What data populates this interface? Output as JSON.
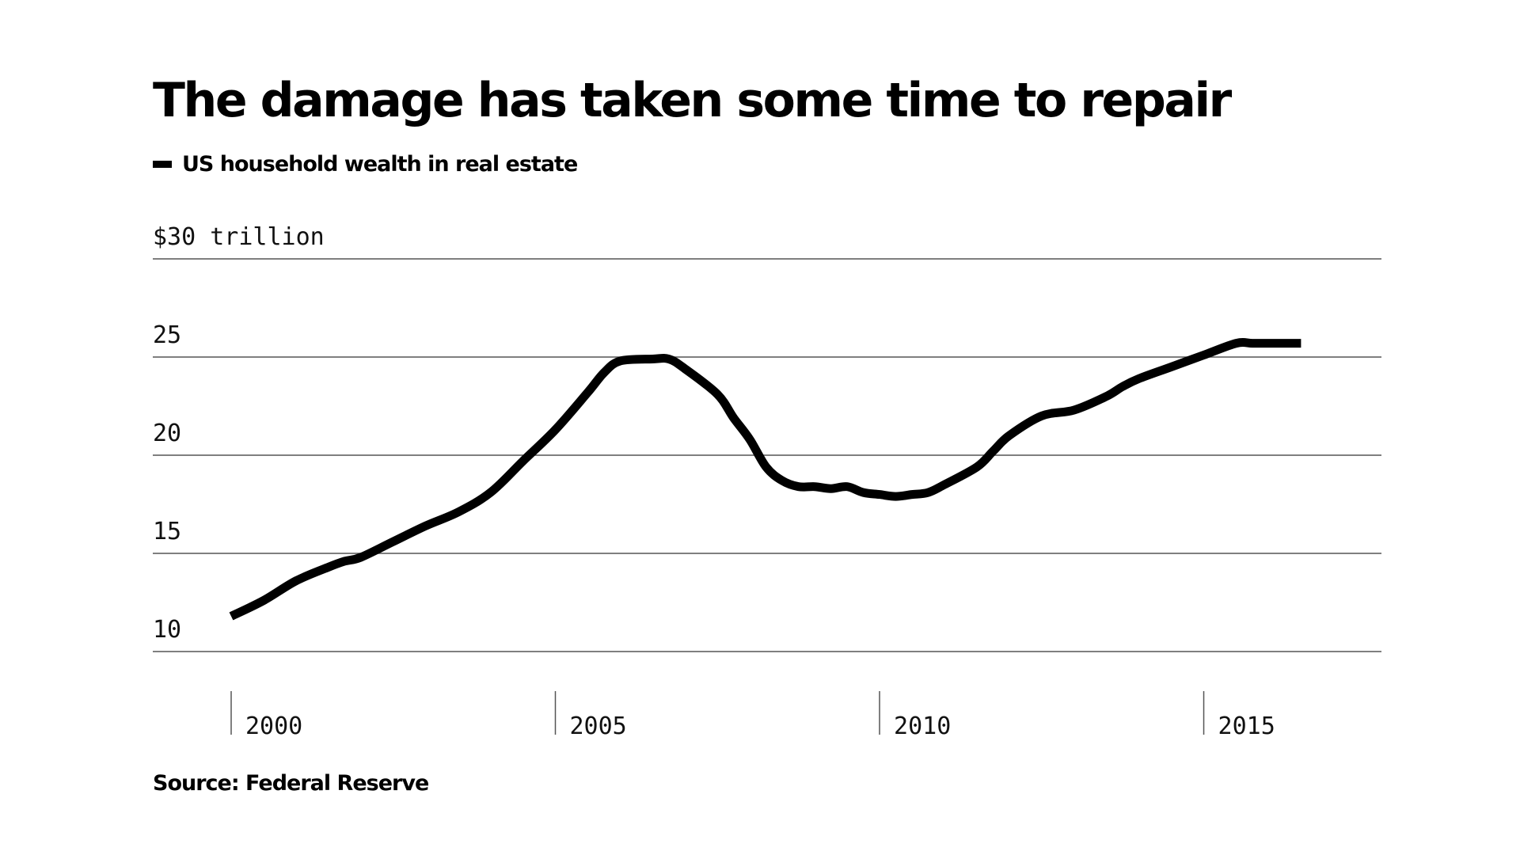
{
  "title": "The damage has taken some time to repair",
  "legend_label": "US household wealth in real estate",
  "source": "Source: Federal Reserve",
  "colors": {
    "line": "#000000",
    "grid": "#555555",
    "text": "#111111",
    "background": "#ffffff"
  },
  "chart_data": {
    "type": "line",
    "title": "The damage has taken some time to repair",
    "xlabel": "",
    "ylabel": "",
    "xlim": [
      1999.6,
      2017.65
    ],
    "ylim": [
      10,
      30
    ],
    "y_ticks": [
      10,
      15,
      20,
      25,
      30
    ],
    "y_tick_labels": [
      "10",
      "15",
      "20",
      "25",
      "$30 trillion"
    ],
    "x_ticks": [
      2000,
      2005,
      2010,
      2015
    ],
    "x_tick_labels": [
      "2000",
      "2005",
      "2010",
      "2015"
    ],
    "grid": true,
    "legend": "top-left",
    "series": [
      {
        "name": "US household wealth in real estate",
        "x": [
          2000.0,
          2000.5,
          2001.0,
          2001.5,
          2001.75,
          2002.0,
          2002.5,
          2003.0,
          2003.5,
          2004.0,
          2004.5,
          2005.0,
          2005.5,
          2005.75,
          2006.0,
          2006.5,
          2006.75,
          2007.0,
          2007.5,
          2007.75,
          2008.0,
          2008.25,
          2008.5,
          2008.75,
          2009.0,
          2009.25,
          2009.5,
          2009.75,
          2010.0,
          2010.25,
          2010.5,
          2010.75,
          2011.0,
          2011.5,
          2011.75,
          2012.0,
          2012.5,
          2013.0,
          2013.5,
          2013.75,
          2014.0,
          2014.5,
          2015.0,
          2015.5,
          2015.75,
          2016.0,
          2016.5
        ],
        "values": [
          11.8,
          12.6,
          13.6,
          14.3,
          14.6,
          14.8,
          15.6,
          16.4,
          17.1,
          18.1,
          19.7,
          21.3,
          23.2,
          24.2,
          24.8,
          24.9,
          24.9,
          24.4,
          23.1,
          21.9,
          20.8,
          19.4,
          18.7,
          18.4,
          18.4,
          18.3,
          18.4,
          18.1,
          18.0,
          17.9,
          18.0,
          18.1,
          18.5,
          19.4,
          20.2,
          21.0,
          22.0,
          22.3,
          23.0,
          23.5,
          23.9,
          24.5,
          25.1,
          25.7,
          25.7,
          25.7,
          25.7
        ]
      }
    ]
  }
}
